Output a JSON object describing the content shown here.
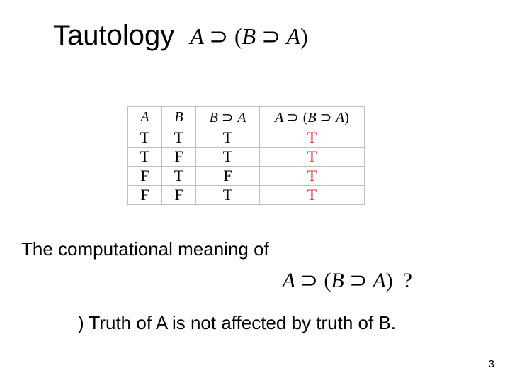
{
  "title": {
    "word": "Tautology",
    "formula_html": "<span>A</span> <span class=\"supset\">⊃</span> <span class=\"paren\">(</span><span>B</span> <span class=\"supset\">⊃</span> <span>A</span><span class=\"paren\">)</span>"
  },
  "truth_table": {
    "columns": [
      {
        "html": "A",
        "width_class": "col-narrow"
      },
      {
        "html": "B",
        "width_class": "col-narrow"
      },
      {
        "html": "<span>B</span> <span class=\"supset\">⊃</span> <span>A</span>",
        "width_class": "col-mid"
      },
      {
        "html": "<span>A</span> <span class=\"supset\">⊃</span> <span class=\"paren\">(</span><span>B</span> <span class=\"supset\">⊃</span> <span>A</span><span class=\"paren\">)</span>",
        "width_class": "col-wide"
      }
    ],
    "rows": [
      [
        "T",
        "T",
        "T",
        "T"
      ],
      [
        "T",
        "F",
        "T",
        "T"
      ],
      [
        "F",
        "T",
        "F",
        "T"
      ],
      [
        "F",
        "F",
        "T",
        "T"
      ]
    ],
    "cell_colors": [
      [
        "#000",
        "#000",
        "#000",
        "#d43030"
      ],
      [
        "#000",
        "#000",
        "#000",
        "#d43030"
      ],
      [
        "#000",
        "#000",
        "#000",
        "#d43030"
      ],
      [
        "#000",
        "#000",
        "#000",
        "#d43030"
      ]
    ],
    "border_color": "#bfbfbf",
    "header_fontsize": 20,
    "body_fontsize": 22
  },
  "meaning_line": "The computational meaning of",
  "formula_question_html": "<span>A</span> <span class=\"supset\">⊃</span> <span class=\"paren\">(</span><span>B</span> <span class=\"supset\">⊃</span> <span>A</span><span class=\"paren\">)</span><span class=\"qmark\">?</span>",
  "bottom_line": ") Truth of A is not affected by truth of B.",
  "page_number": "3",
  "colors": {
    "background": "#ffffff",
    "text": "#000000",
    "highlight": "#d43030",
    "table_border": "#bfbfbf"
  }
}
